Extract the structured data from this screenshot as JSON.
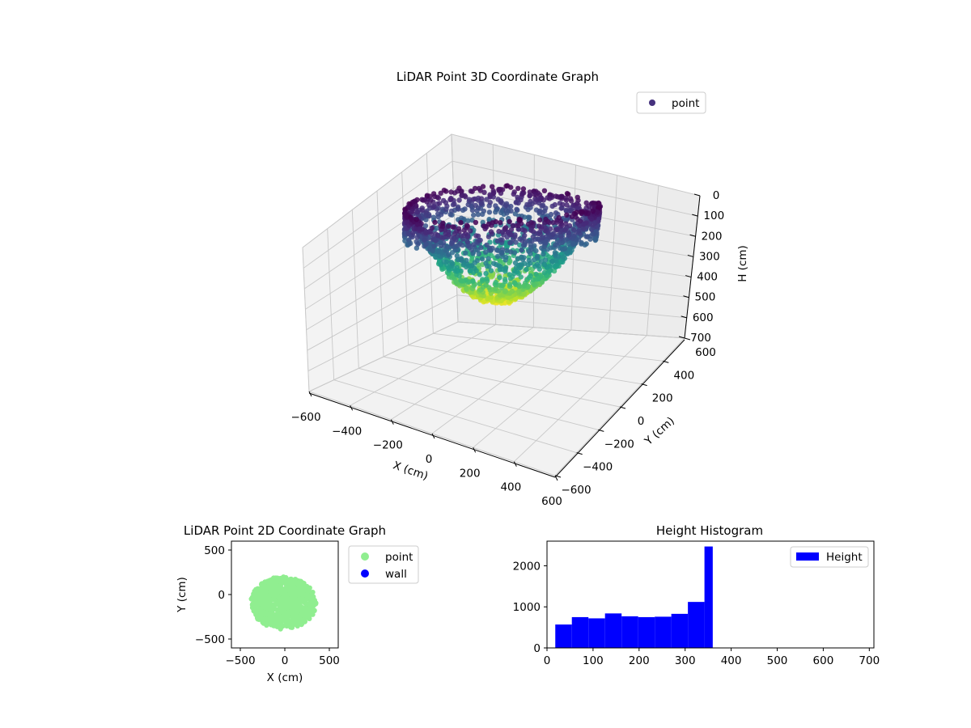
{
  "chart_data": [
    {
      "id": "scatter3d",
      "type": "scatter",
      "title": "LiDAR Point 3D Coordinate Graph",
      "xlabel": "X (cm)",
      "ylabel": "Y (cm)",
      "zlabel": "H (cm)",
      "xlim": [
        -600,
        600
      ],
      "ylim": [
        -600,
        600
      ],
      "zlim": [
        0,
        700
      ],
      "z_inverted": true,
      "x_ticks": [
        "−600",
        "−400",
        "−200",
        "0",
        "200",
        "400",
        "600"
      ],
      "y_ticks": [
        "−600",
        "−400",
        "−200",
        "0",
        "200",
        "400",
        "600"
      ],
      "z_ticks": [
        "0",
        "100",
        "200",
        "300",
        "400",
        "500",
        "600",
        "700"
      ],
      "colormap": "viridis",
      "legend": [
        {
          "label": "point",
          "color": "#46327e"
        }
      ],
      "legend_position": "upper-right",
      "grid": true,
      "shape": {
        "description": "bowl-shaped point cloud",
        "x_range": [
          -400,
          400
        ],
        "y_range": [
          -400,
          200
        ],
        "h_range": [
          0,
          360
        ]
      }
    },
    {
      "id": "scatter2d",
      "type": "scatter",
      "title": "LiDAR Point 2D Coordinate Graph",
      "xlabel": "X (cm)",
      "ylabel": "Y (cm)",
      "xlim": [
        -600,
        600
      ],
      "ylim": [
        -600,
        600
      ],
      "x_ticks": [
        -500,
        0,
        500
      ],
      "y_ticks": [
        -500,
        0,
        500
      ],
      "series": [
        {
          "name": "point",
          "color": "#90ee90",
          "x_range": [
            -380,
            350
          ],
          "y_range": [
            -390,
            200
          ]
        },
        {
          "name": "wall",
          "color": "#0000ff",
          "points": []
        }
      ],
      "legend_position": "outside-right"
    },
    {
      "id": "histogram",
      "type": "bar",
      "title": "Height Histogram",
      "xlabel": "",
      "ylabel": "",
      "xlim": [
        0,
        710
      ],
      "ylim": [
        0,
        2600
      ],
      "x_ticks": [
        0,
        100,
        200,
        300,
        400,
        500,
        600,
        700
      ],
      "y_ticks": [
        0,
        1000,
        2000
      ],
      "bin_edges": [
        18,
        54,
        90,
        126,
        162,
        198,
        234,
        270,
        306,
        342,
        360
      ],
      "values": [
        570,
        750,
        720,
        840,
        770,
        750,
        760,
        830,
        1120,
        2470
      ],
      "series": [
        {
          "name": "Height",
          "color": "#0000ff"
        }
      ],
      "legend_position": "upper-right"
    }
  ]
}
